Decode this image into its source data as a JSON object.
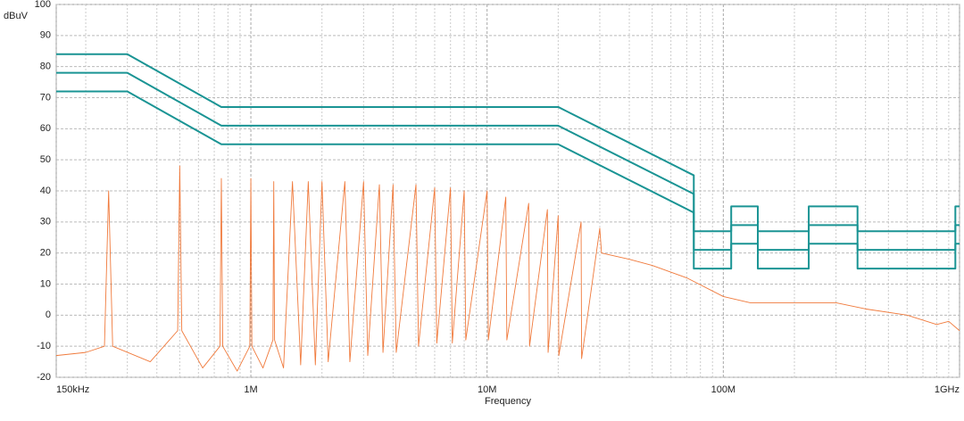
{
  "chart_data": {
    "type": "line",
    "ylabel": "dBuV",
    "xlabel": "Frequency",
    "xscale": "log",
    "grid": true,
    "xlim": [
      150000,
      1000000000
    ],
    "ylim": [
      -20,
      100
    ],
    "yticks": [
      -20,
      -10,
      0,
      10,
      20,
      30,
      40,
      50,
      60,
      70,
      80,
      90,
      100
    ],
    "xticks": [
      {
        "value": 150000,
        "label": "150kHz"
      },
      {
        "value": 1000000,
        "label": "1M"
      },
      {
        "value": 10000000,
        "label": "10M"
      },
      {
        "value": 100000000,
        "label": "100M"
      },
      {
        "value": 1000000000,
        "label": "1GHz"
      }
    ],
    "x_minor_ticks": [
      200000,
      300000,
      400000,
      500000,
      600000,
      700000,
      800000,
      900000,
      2000000,
      3000000,
      4000000,
      5000000,
      6000000,
      7000000,
      8000000,
      9000000,
      20000000,
      30000000,
      40000000,
      50000000,
      60000000,
      70000000,
      80000000,
      90000000,
      200000000,
      300000000,
      400000000,
      500000000,
      600000000,
      700000000,
      800000000,
      900000000
    ],
    "series": [
      {
        "color": "#f07a3c",
        "x": [
          150000,
          200000,
          240000,
          250000,
          260000,
          375000,
          490000,
          500000,
          510000,
          625000,
          740000,
          750000,
          760000,
          875000,
          990000,
          1000000,
          1010000,
          1125000,
          1240000,
          1250000,
          1260000,
          1375000,
          1500000,
          1625000,
          1750000,
          1875000,
          2000000,
          2125000,
          2500000,
          2625000,
          3000000,
          3125000,
          3500000,
          3625000,
          4000000,
          4125000,
          5000000,
          5125000,
          6000000,
          6125000,
          7000000,
          7125000,
          8000000,
          8125000,
          10000000,
          10125000,
          12000000,
          12125000,
          15000000,
          15125000,
          18000000,
          18125000,
          20000000,
          20125000,
          25000000,
          25125000,
          30000000,
          30500000,
          40000000,
          50000000,
          70000000,
          100000000,
          130000000,
          200000000,
          300000000,
          400000000,
          600000000,
          800000000,
          900000000,
          1000000000
        ],
        "values": [
          -13,
          -12,
          -10,
          40,
          -10,
          -15,
          -5,
          48,
          -5,
          -17,
          -10,
          44,
          -10,
          -18,
          -10,
          44,
          -10,
          -17,
          -8,
          43,
          -8,
          -17,
          43,
          -16,
          43,
          -16,
          43,
          -15,
          43,
          -15,
          43,
          -13,
          42,
          -12,
          42,
          -12,
          42,
          -10,
          41,
          -9,
          41,
          -9,
          40,
          -8,
          40,
          -8,
          38,
          -8,
          36,
          -10,
          34,
          -12,
          32,
          -13,
          30,
          -14,
          28,
          20,
          18,
          16,
          12,
          6,
          4,
          4,
          4,
          2,
          0,
          -3,
          -2,
          -5
        ]
      },
      {
        "color": "#1a9494",
        "x": [
          150000,
          300000,
          750000,
          20000000,
          75000000,
          75000000,
          108000000,
          108000000,
          140000000,
          140000000,
          230000000,
          230000000,
          370000000,
          370000000,
          960000000,
          960000000,
          1000000000
        ],
        "values": [
          84,
          84,
          67,
          67,
          45,
          27,
          27,
          35,
          35,
          27,
          27,
          35,
          35,
          27,
          27,
          35,
          35
        ]
      },
      {
        "color": "#1a9494",
        "x": [
          150000,
          300000,
          750000,
          20000000,
          75000000,
          75000000,
          108000000,
          108000000,
          140000000,
          140000000,
          230000000,
          230000000,
          370000000,
          370000000,
          960000000,
          960000000,
          1000000000
        ],
        "values": [
          78,
          78,
          61,
          61,
          39,
          21,
          21,
          29,
          29,
          21,
          21,
          29,
          29,
          21,
          21,
          29,
          29
        ]
      },
      {
        "color": "#1a9494",
        "x": [
          150000,
          300000,
          750000,
          20000000,
          75000000,
          75000000,
          108000000,
          108000000,
          140000000,
          140000000,
          230000000,
          230000000,
          370000000,
          370000000,
          960000000,
          960000000,
          1000000000
        ],
        "values": [
          72,
          72,
          55,
          55,
          33,
          15,
          15,
          23,
          23,
          15,
          15,
          23,
          23,
          15,
          15,
          23,
          23
        ]
      }
    ]
  }
}
